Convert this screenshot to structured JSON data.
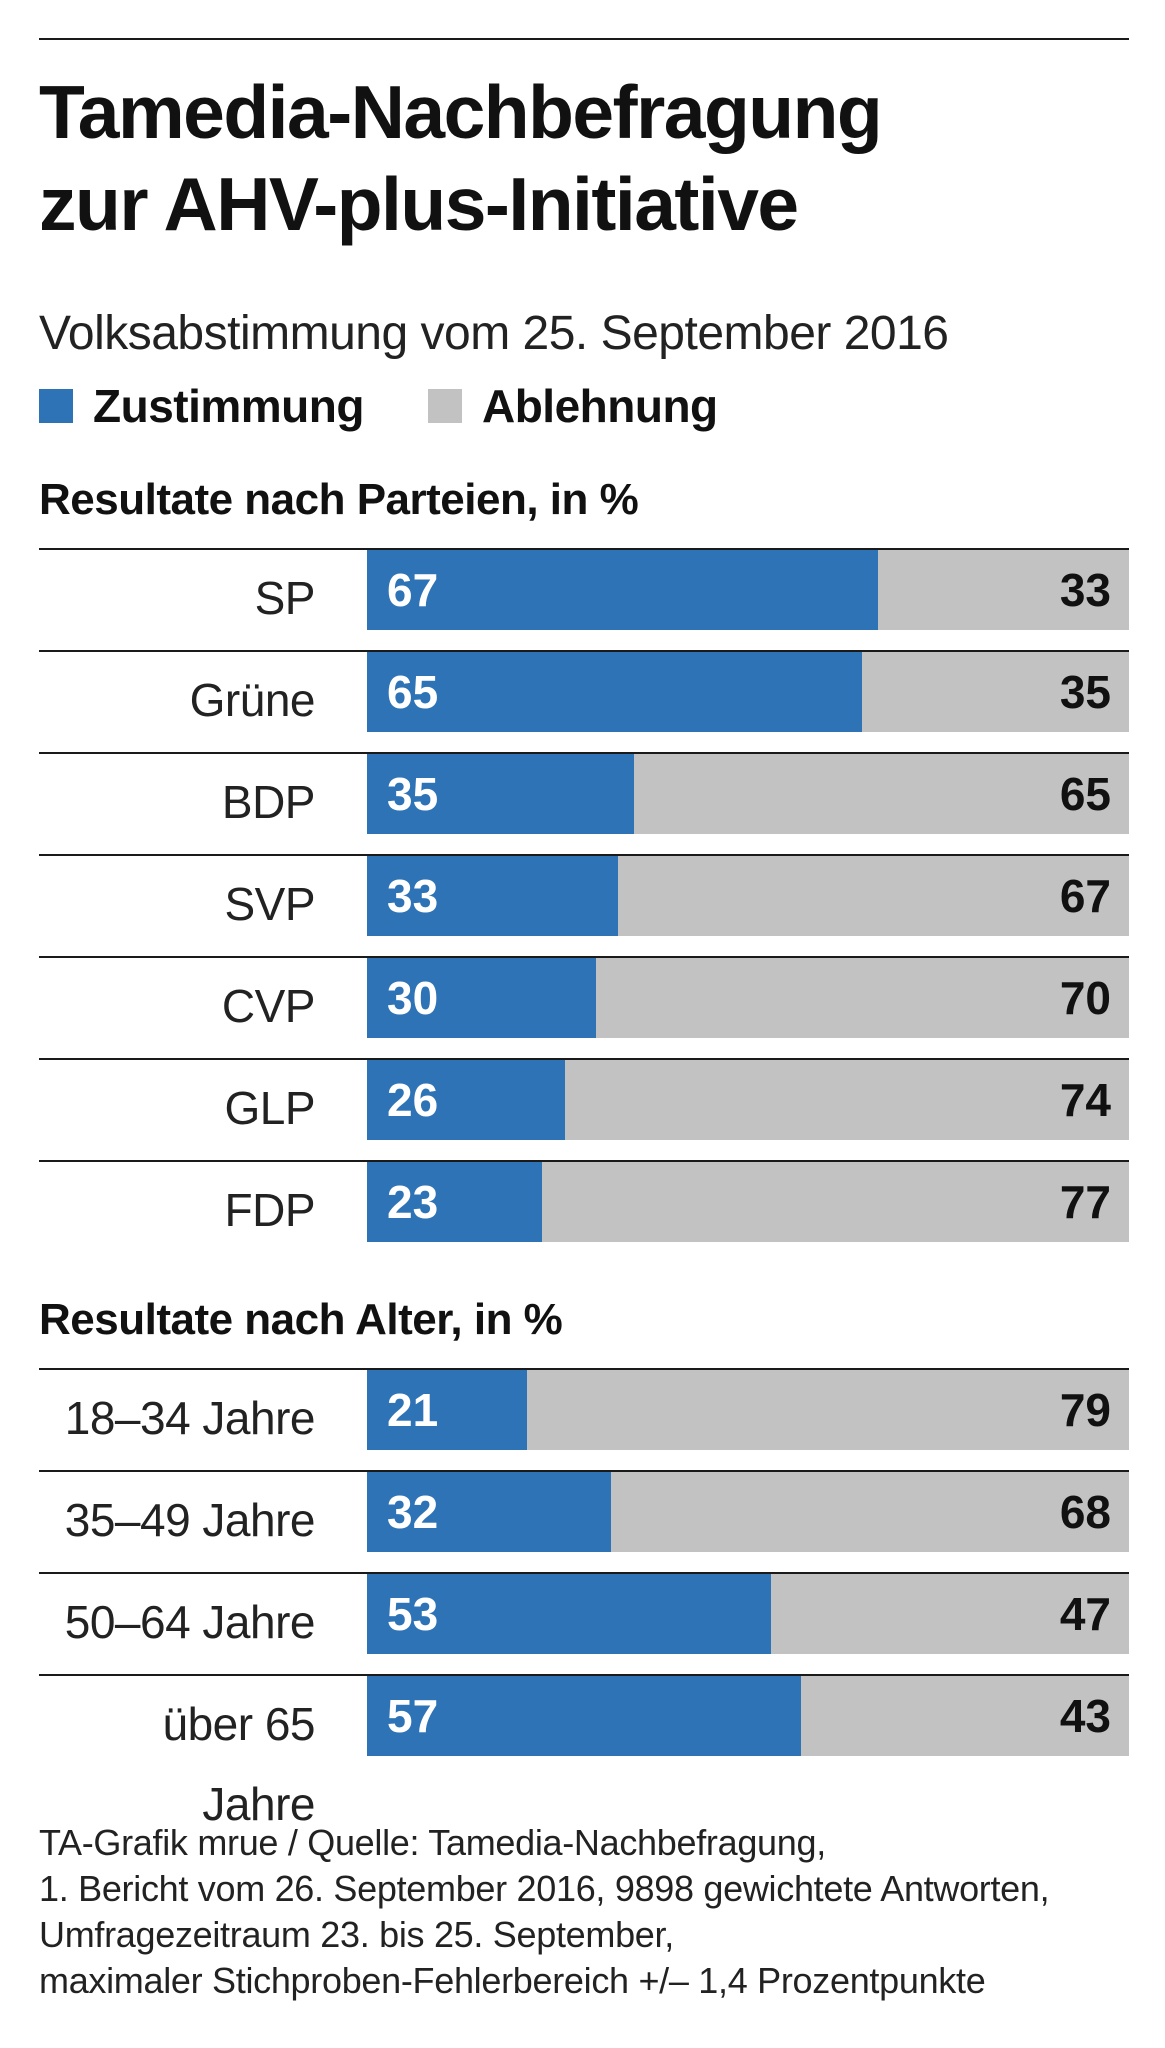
{
  "title_lines": [
    "Tamedia-Nachbefragung",
    "zur AHV-plus-Initiative"
  ],
  "subtitle": "Volksabstimmung vom 25. September 2016",
  "legend": {
    "yes_label": "Zustimmung",
    "no_label": "Ablehnung",
    "yes_color": "#2e73b6",
    "no_color": "#c3c2c2"
  },
  "chart_data": [
    {
      "type": "bar",
      "orientation": "horizontal",
      "stacked": true,
      "title": "Resultate nach Parteien, in %",
      "categories": [
        "SP",
        "Grüne",
        "BDP",
        "SVP",
        "CVP",
        "GLP",
        "FDP"
      ],
      "series": [
        {
          "name": "Zustimmung",
          "values": [
            67,
            65,
            35,
            33,
            30,
            26,
            23
          ]
        },
        {
          "name": "Ablehnung",
          "values": [
            33,
            35,
            65,
            67,
            70,
            74,
            77
          ]
        }
      ],
      "xlim": [
        0,
        100
      ]
    },
    {
      "type": "bar",
      "orientation": "horizontal",
      "stacked": true,
      "title": "Resultate nach Alter, in %",
      "categories": [
        "18–34 Jahre",
        "35–49 Jahre",
        "50–64 Jahre",
        "über 65 Jahre"
      ],
      "series": [
        {
          "name": "Zustimmung",
          "values": [
            21,
            32,
            53,
            57
          ]
        },
        {
          "name": "Ablehnung",
          "values": [
            79,
            68,
            47,
            43
          ]
        }
      ],
      "xlim": [
        0,
        100
      ]
    }
  ],
  "source_lines": [
    "TA-Grafik mrue / Quelle: Tamedia-Nachbefragung,",
    "1. Bericht vom 26. September 2016, 9898 gewichtete Antworten,",
    "Umfragezeitraum 23. bis 25. September,",
    "maximaler Stichproben-Fehlerbereich +/– 1,4 Prozentpunkte"
  ]
}
